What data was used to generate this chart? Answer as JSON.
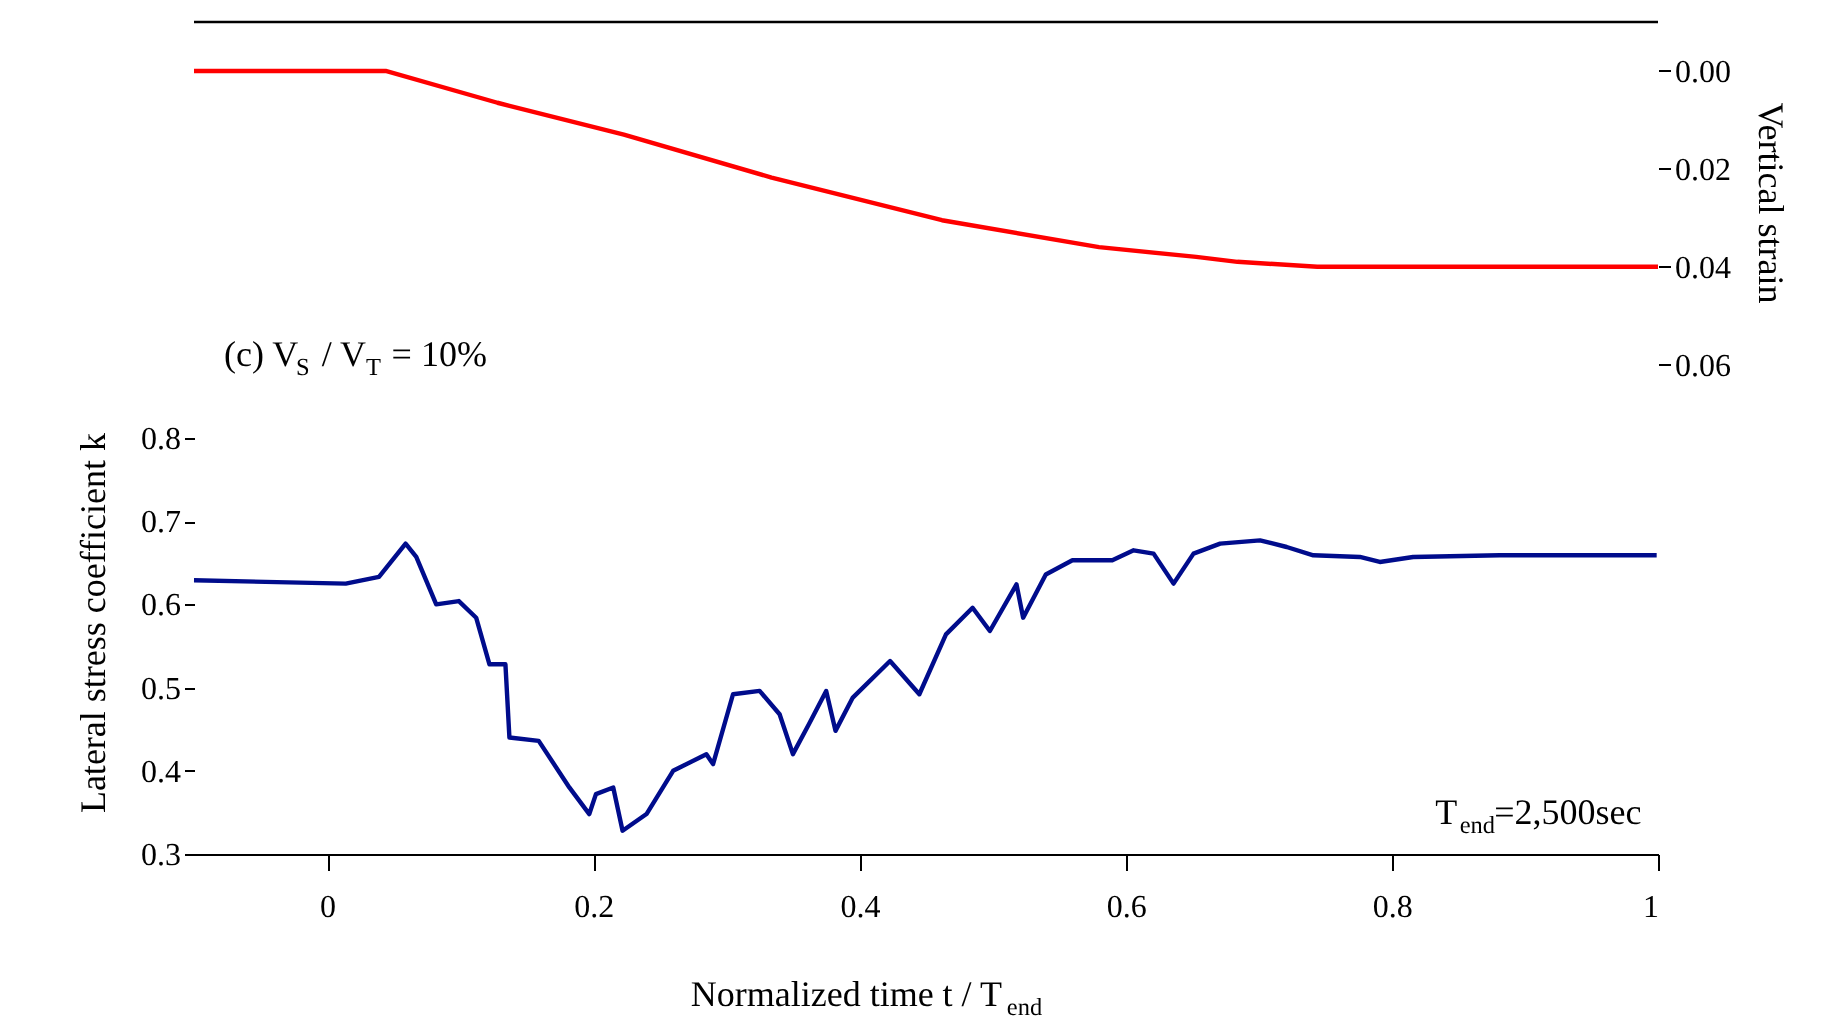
{
  "chart_data": {
    "type": "line",
    "xlabel": "Normalized time t / T$_{end}$",
    "ylabel": "Lateral stress coefficient k",
    "y2label": "Vertical strain",
    "annotations": [
      "(c) V$_{S}$ / V$_{T}$ = 10%",
      "T$_{end}$=2,500sec"
    ],
    "xlim": [
      -0.1,
      1
    ],
    "xticks": [
      0,
      0.2,
      0.4,
      0.6,
      0.8,
      1
    ],
    "ylim": [
      0.3,
      1.3
    ],
    "yticks": [
      0.3,
      0.4,
      0.5,
      0.6,
      0.7,
      0.8
    ],
    "y2lim": [
      0.16,
      -0.01
    ],
    "y2ticks": [
      {
        "value": 0,
        "label": "0.00"
      },
      {
        "value": 0.02,
        "label": "0.02"
      },
      {
        "value": 0.04,
        "label": "0.04"
      },
      {
        "value": 0.06,
        "label": "0.06"
      }
    ],
    "grid": false,
    "marker": "none",
    "line_style": "solid",
    "series": [
      {
        "color": "#ff0000",
        "axis": "y2",
        "x": [
          -0.1,
          0.044,
          0.128,
          0.223,
          0.334,
          0.462,
          0.58,
          0.653,
          0.684,
          0.744,
          1.0
        ],
        "values": [
          0,
          0,
          0.0065,
          0.013,
          0.0218,
          0.0305,
          0.036,
          0.038,
          0.039,
          0.04,
          0.04
        ]
      },
      {
        "color": "#000c8c",
        "x": [
          -0.1,
          0.014,
          0.039,
          0.059,
          0.067,
          0.082,
          0.099,
          0.112,
          0.122,
          0.134,
          0.137,
          0.159,
          0.182,
          0.197,
          0.202,
          0.215,
          0.222,
          0.24,
          0.26,
          0.285,
          0.29,
          0.305,
          0.325,
          0.34,
          0.35,
          0.362,
          0.375,
          0.382,
          0.395,
          0.423,
          0.445,
          0.465,
          0.485,
          0.498,
          0.518,
          0.523,
          0.54,
          0.56,
          0.59,
          0.606,
          0.621,
          0.636,
          0.651,
          0.671,
          0.701,
          0.721,
          0.741,
          0.776,
          0.791,
          0.816,
          0.881,
          0.999
        ],
        "values": [
          0.629,
          0.625,
          0.633,
          0.673,
          0.657,
          0.6,
          0.604,
          0.584,
          0.528,
          0.528,
          0.44,
          0.436,
          0.38,
          0.348,
          0.372,
          0.38,
          0.328,
          0.348,
          0.4,
          0.42,
          0.408,
          0.492,
          0.496,
          0.468,
          0.42,
          0.456,
          0.496,
          0.448,
          0.488,
          0.532,
          0.492,
          0.564,
          0.596,
          0.568,
          0.624,
          0.584,
          0.636,
          0.653,
          0.653,
          0.665,
          0.661,
          0.625,
          0.661,
          0.673,
          0.677,
          0.669,
          0.659,
          0.657,
          0.651,
          0.657,
          0.659,
          0.659
        ]
      }
    ]
  }
}
